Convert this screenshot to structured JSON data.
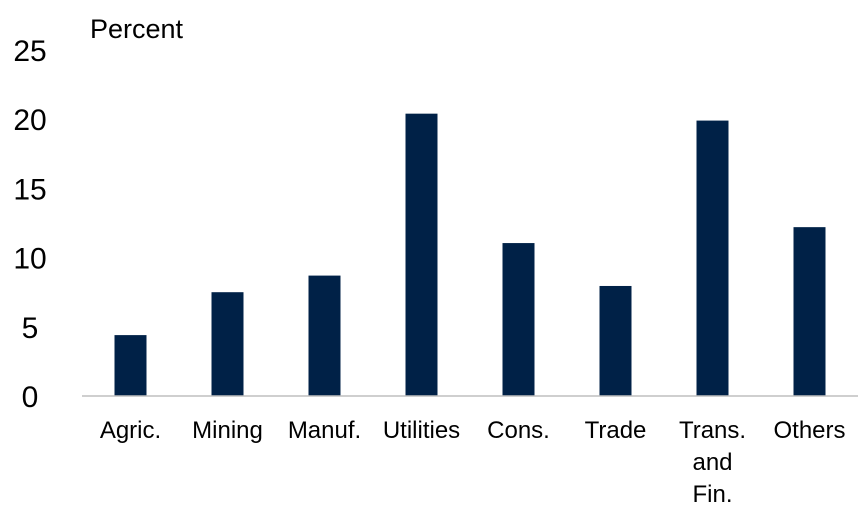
{
  "chart_data": {
    "type": "bar",
    "y_label": "Percent",
    "categories": [
      "Agric.",
      "Mining",
      "Manuf.",
      "Utilities",
      "Cons.",
      "Trade",
      "Trans. and Fin.",
      "Others"
    ],
    "values": [
      4.4,
      7.5,
      8.7,
      20.4,
      11.05,
      7.95,
      19.9,
      12.2
    ],
    "color": "#002147",
    "ylim": [
      0,
      25
    ],
    "yticks": [
      0,
      5,
      10,
      15,
      20,
      25
    ],
    "grid": false
  }
}
